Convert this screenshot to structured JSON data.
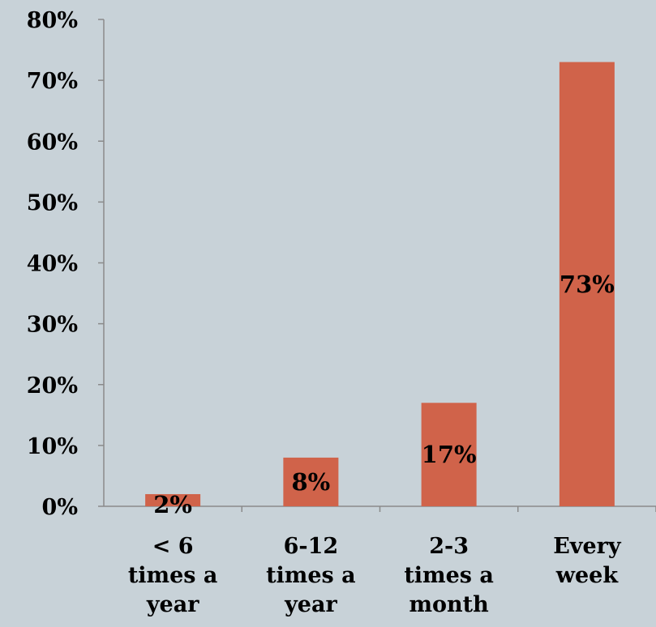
{
  "chart_data": {
    "type": "bar",
    "categories": [
      [
        "< 6",
        "times a",
        "year"
      ],
      [
        "6-12",
        "times a",
        "year"
      ],
      [
        "2-3",
        "times a",
        "month"
      ],
      [
        "Every",
        "week"
      ]
    ],
    "values": [
      2,
      8,
      17,
      73
    ],
    "data_labels": [
      "2%",
      "8%",
      "17%",
      "73%"
    ],
    "ylim": [
      0,
      80
    ],
    "yticks": [
      0,
      10,
      20,
      30,
      40,
      50,
      60,
      70,
      80
    ],
    "ytick_labels": [
      "0%",
      "10%",
      "20%",
      "30%",
      "40%",
      "50%",
      "60%",
      "70%",
      "80%"
    ],
    "title": "",
    "xlabel": "",
    "ylabel": "",
    "grid": false,
    "legend": "none",
    "colors": {
      "bar": "#d0634a",
      "background": "#c8d2d8",
      "axis": "#8a8a8a"
    }
  }
}
